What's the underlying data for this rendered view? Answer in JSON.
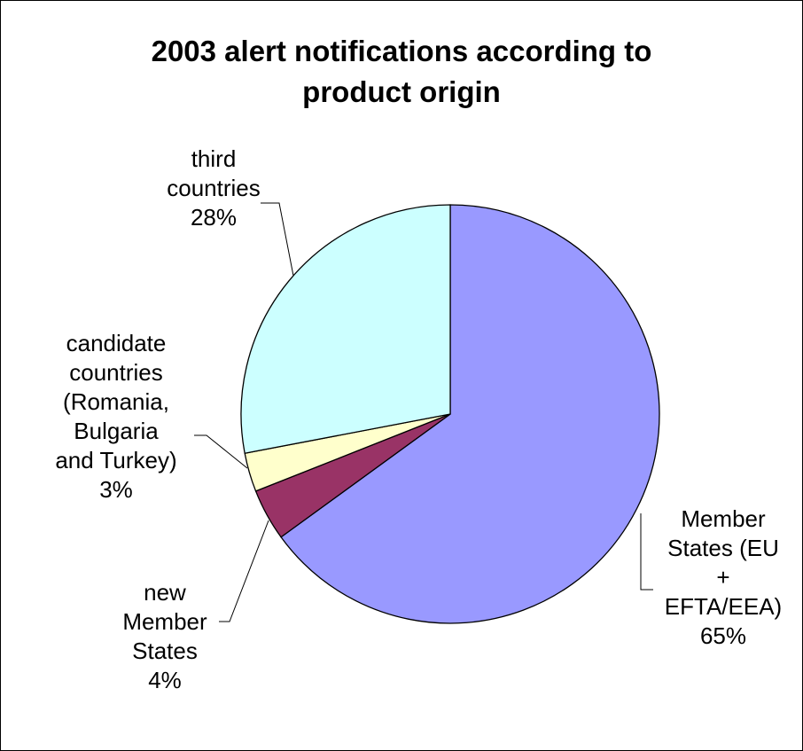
{
  "chart_data": {
    "type": "pie",
    "title_lines": [
      "2003 alert notifications according to",
      "product origin"
    ],
    "slices": [
      {
        "label_lines": [
          "Member",
          "States (EU",
          "+",
          "EFTA/EEA)"
        ],
        "percent_label": "65%",
        "value": 65,
        "color": "#9999ff"
      },
      {
        "label_lines": [
          "new",
          "Member",
          "States"
        ],
        "percent_label": "4%",
        "value": 4,
        "color": "#993366"
      },
      {
        "label_lines": [
          "candidate",
          "countries",
          "(Romania,",
          "Bulgaria",
          "and Turkey)"
        ],
        "percent_label": "3%",
        "value": 3,
        "color": "#ffffcc"
      },
      {
        "label_lines": [
          "third",
          "countries"
        ],
        "percent_label": "28%",
        "value": 28,
        "color": "#ccffff"
      }
    ]
  }
}
